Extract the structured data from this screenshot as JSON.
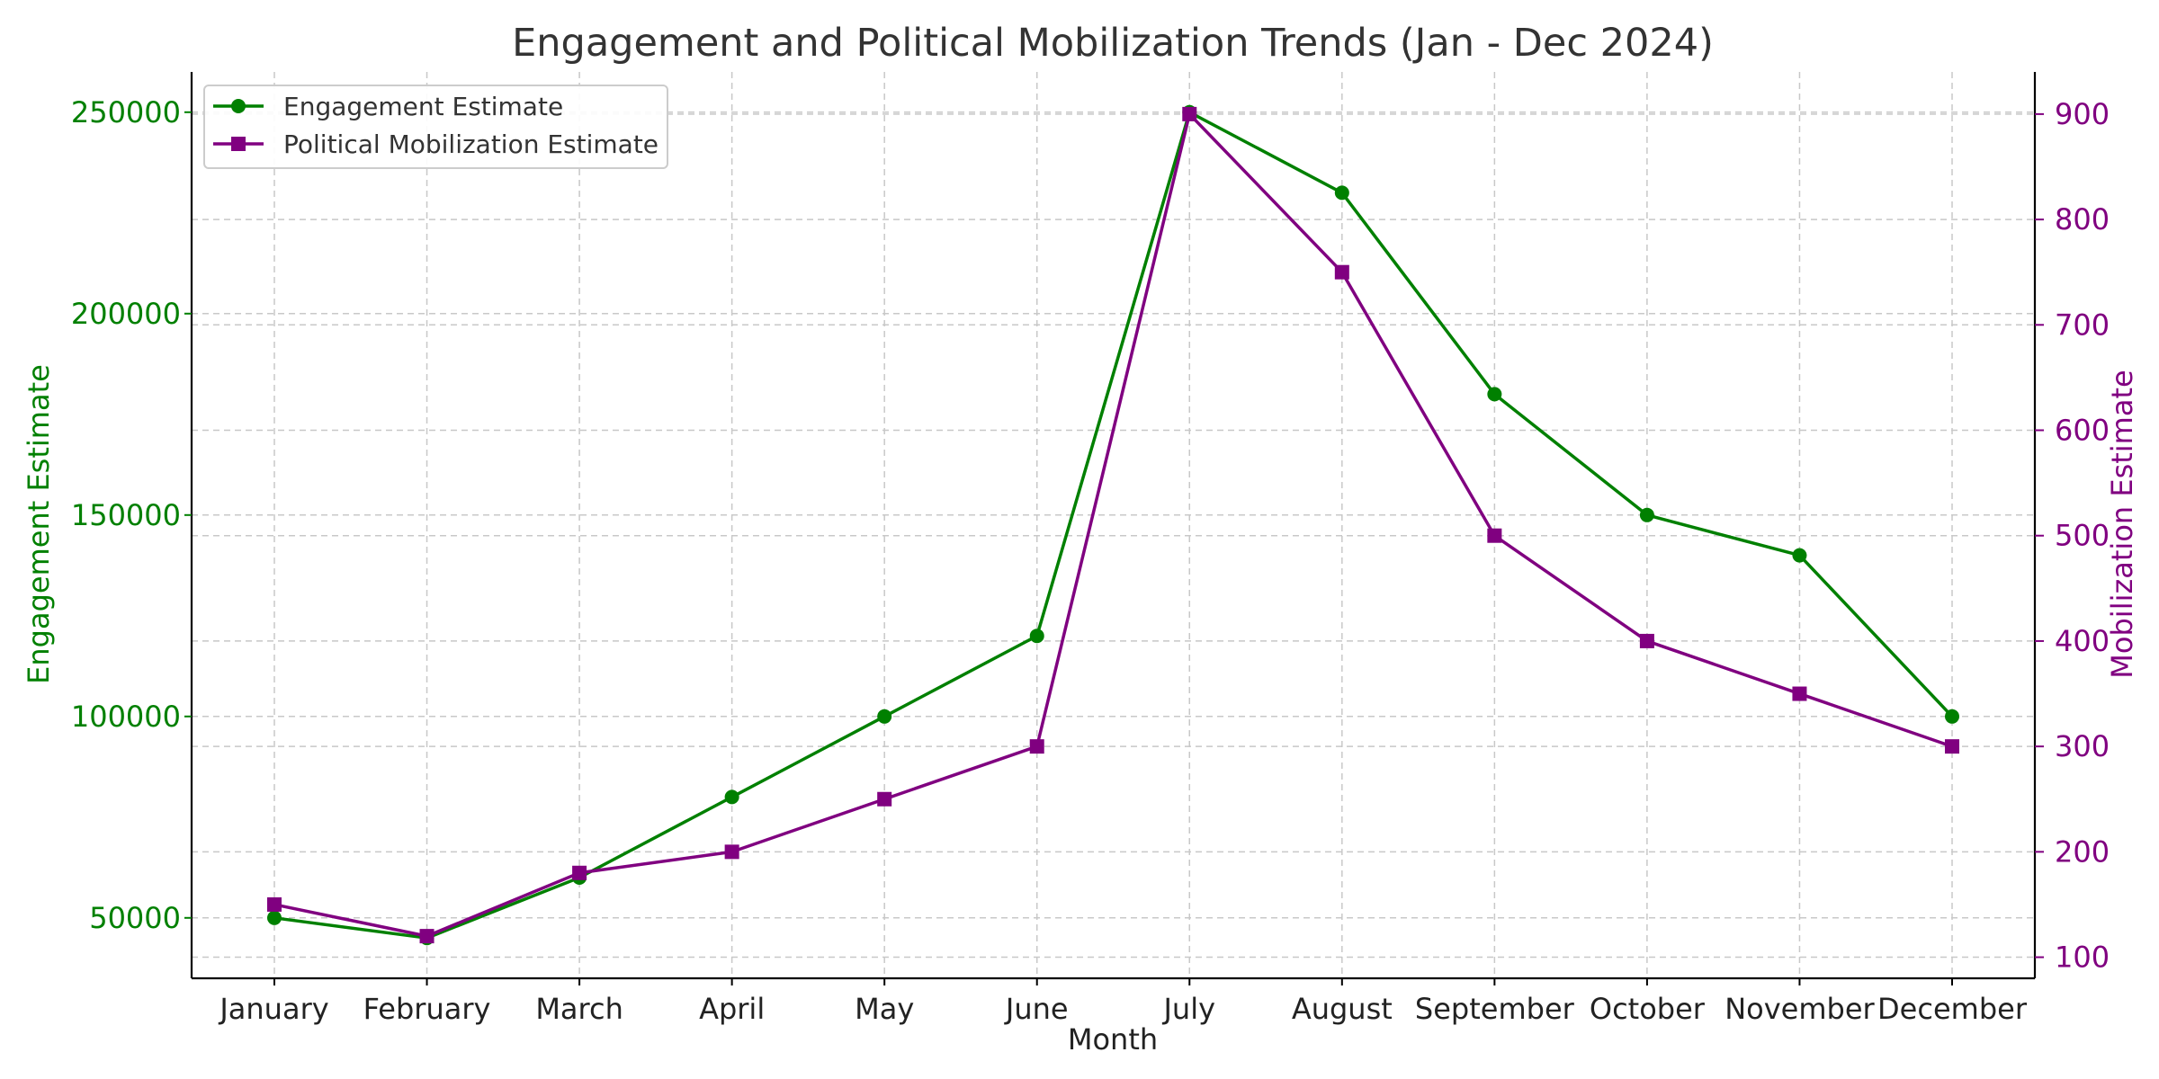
{
  "chart_data": {
    "type": "line",
    "title": "Engagement and Political Mobilization Trends (Jan - Dec 2024)",
    "xlabel": "Month",
    "ylabel_left": "Engagement Estimate",
    "ylabel_right": "Mobilization Estimate",
    "categories": [
      "January",
      "February",
      "March",
      "April",
      "May",
      "June",
      "July",
      "August",
      "September",
      "October",
      "November",
      "December"
    ],
    "y_left_ticks": [
      "50000",
      "100000",
      "150000",
      "200000",
      "250000"
    ],
    "y_right_ticks": [
      "100",
      "200",
      "300",
      "400",
      "500",
      "600",
      "700",
      "800",
      "900"
    ],
    "ylim_left": [
      35000,
      260000
    ],
    "ylim_right": [
      80,
      940
    ],
    "grid": true,
    "legend_position": "top-left",
    "series": [
      {
        "name": "Engagement Estimate",
        "axis": "left",
        "color": "#008000",
        "marker": "circle",
        "values": [
          50000,
          45000,
          60000,
          80000,
          100000,
          120000,
          250000,
          230000,
          180000,
          150000,
          140000,
          100000
        ]
      },
      {
        "name": "Political Mobilization Estimate",
        "axis": "right",
        "color": "#800080",
        "marker": "square",
        "values": [
          150,
          120,
          180,
          200,
          250,
          300,
          900,
          750,
          500,
          400,
          350,
          300
        ]
      }
    ]
  }
}
